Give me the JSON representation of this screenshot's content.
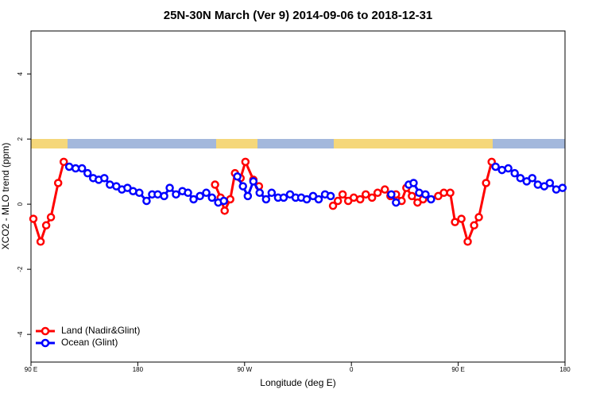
{
  "chart_data": {
    "type": "line",
    "title": "25N-30N March (Ver 9)   2014-09-06 to 2018-12-31",
    "x_label": "Longitude (deg E)",
    "y_label": "XCO2 - MLO trend (ppm)",
    "xlim": [
      90,
      540
    ],
    "ylim": [
      -4.85,
      5.32
    ],
    "xticks": [
      {
        "value": 90,
        "label": "90 E"
      },
      {
        "value": 180,
        "label": "180"
      },
      {
        "value": 270,
        "label": "90 W"
      },
      {
        "value": 360,
        "label": "0"
      },
      {
        "value": 450,
        "label": "90 E"
      },
      {
        "value": 540,
        "label": "180"
      }
    ],
    "yticks": [
      -4,
      -2,
      0,
      2,
      4
    ],
    "legend": "bottomleft",
    "series": [
      {
        "name": "Land (Nadir&Glint)",
        "color": "#ff0000",
        "x": [
          92.0,
          98.1,
          102.8,
          106.8,
          112.9,
          117.6,
          null,
          245.1,
          249.8,
          253.2,
          257.9,
          261.9,
          266.6,
          270.7,
          277.4,
          282.1,
          null,
          344.5,
          348.6,
          352.6,
          357.3,
          362.0,
          367.4,
          372.1,
          377.4,
          382.1,
          388.2,
          392.9,
          397.6,
          402.3,
          406.3,
          411.0,
          415.7,
          420.4,
          433.2,
          437.9,
          443.3,
          447.3,
          452.7,
          458.0,
          463.4,
          467.4,
          473.5,
          478.2
        ],
        "values": [
          -0.45,
          -1.15,
          -0.65,
          -0.4,
          0.65,
          1.3,
          null,
          0.6,
          0.2,
          -0.2,
          0.15,
          0.95,
          0.8,
          1.3,
          0.75,
          0.55,
          null,
          -0.05,
          0.1,
          0.3,
          0.1,
          0.2,
          0.15,
          0.3,
          0.2,
          0.35,
          0.45,
          0.25,
          0.3,
          0.1,
          0.5,
          0.25,
          0.05,
          0.15,
          0.25,
          0.35,
          0.35,
          -0.55,
          -0.45,
          -1.15,
          -0.65,
          -0.4,
          0.65,
          1.3
        ]
      },
      {
        "name": "Ocean (Glint)",
        "color": "#0000ff",
        "x": [
          122.2,
          127.6,
          133.0,
          137.7,
          142.4,
          147.1,
          151.8,
          156.5,
          161.9,
          166.6,
          171.3,
          176.0,
          181.3,
          187.4,
          192.1,
          196.8,
          202.2,
          206.9,
          212.2,
          217.6,
          222.3,
          227.0,
          232.4,
          237.7,
          242.5,
          247.8,
          252.5,
          null,
          263.9,
          268.6,
          272.7,
          277.4,
          282.7,
          288.1,
          292.8,
          298.2,
          302.9,
          308.3,
          313.0,
          317.7,
          322.4,
          327.7,
          332.4,
          337.8,
          342.5,
          null,
          393.6,
          397.6,
          null,
          408.3,
          412.4,
          417.1,
          422.4,
          427.1,
          null,
          481.5,
          486.9,
          492.2,
          497.6,
          502.4,
          507.7,
          512.4,
          517.1,
          522.5,
          527.2,
          532.6,
          537.9
        ],
        "values": [
          1.15,
          1.1,
          1.1,
          0.95,
          0.8,
          0.75,
          0.8,
          0.6,
          0.55,
          0.45,
          0.5,
          0.4,
          0.35,
          0.1,
          0.3,
          0.3,
          0.25,
          0.5,
          0.3,
          0.4,
          0.35,
          0.15,
          0.25,
          0.35,
          0.2,
          0.05,
          0.1,
          null,
          0.85,
          0.55,
          0.25,
          0.7,
          0.35,
          0.15,
          0.35,
          0.2,
          0.2,
          0.3,
          0.2,
          0.2,
          0.15,
          0.25,
          0.15,
          0.3,
          0.25,
          null,
          0.3,
          0.05,
          null,
          0.6,
          0.65,
          0.35,
          0.3,
          0.15,
          null,
          1.15,
          1.05,
          1.1,
          0.95,
          0.8,
          0.7,
          0.8,
          0.6,
          0.55,
          0.65,
          0.45,
          0.5
        ]
      }
    ]
  }
}
